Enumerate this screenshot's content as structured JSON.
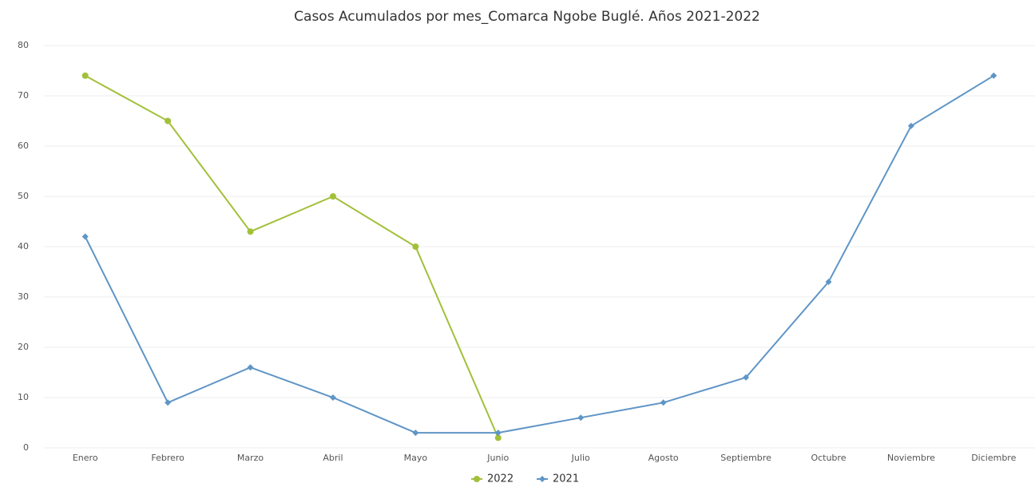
{
  "chart_data": {
    "type": "line",
    "title": "Casos Acumulados por mes_Comarca Ngobe Buglé. Años 2021-2022",
    "categories": [
      "Enero",
      "Febrero",
      "Marzo",
      "Abril",
      "Mayo",
      "Junio",
      "Julio",
      "Agosto",
      "Septiembre",
      "Octubre",
      "Noviembre",
      "Diciembre"
    ],
    "series": [
      {
        "name": "2022",
        "color": "#a2c03a",
        "marker": "circle",
        "values": [
          74,
          65,
          43,
          50,
          40,
          2,
          null,
          null,
          null,
          null,
          null,
          null
        ]
      },
      {
        "name": "2021",
        "color": "#5f95c6",
        "marker": "diamond",
        "values": [
          42,
          9,
          16,
          10,
          3,
          3,
          6,
          9,
          14,
          33,
          64,
          74
        ]
      }
    ],
    "ylim": [
      0,
      80
    ],
    "yticks": [
      0,
      10,
      20,
      30,
      40,
      50,
      60,
      70,
      80
    ],
    "grid": true,
    "legend": "bottom"
  }
}
